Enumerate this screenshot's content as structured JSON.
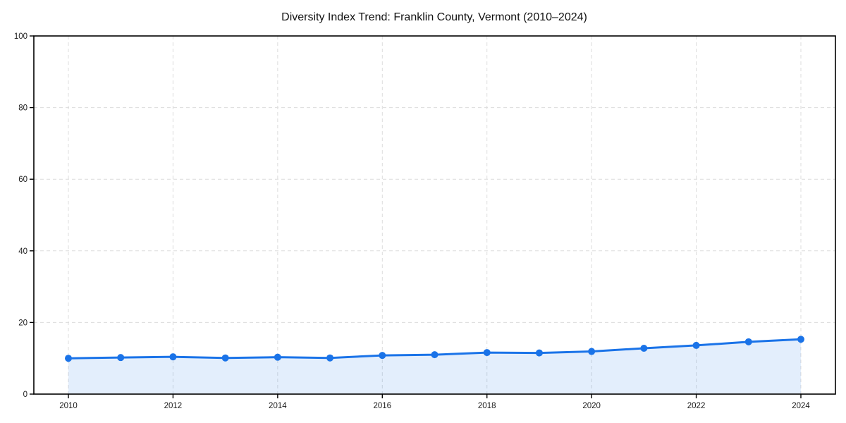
{
  "page": {
    "background_color": "#ffffff"
  },
  "chart_data": {
    "type": "line",
    "title": "Diversity Index Trend: Franklin County, Vermont (2010–2024)",
    "x": [
      2010,
      2011,
      2012,
      2013,
      2014,
      2015,
      2016,
      2017,
      2018,
      2019,
      2020,
      2021,
      2022,
      2023,
      2024
    ],
    "series": [
      {
        "name": "Diversity Index",
        "values": [
          10.0,
          10.2,
          10.4,
          10.1,
          10.3,
          10.1,
          10.8,
          11.0,
          11.6,
          11.5,
          11.9,
          12.8,
          13.6,
          14.6,
          15.3
        ]
      }
    ],
    "xlabel": "",
    "ylabel": "",
    "xlim": [
      2010,
      2024
    ],
    "ylim": [
      0,
      100
    ],
    "yticks": [
      0,
      20,
      40,
      60,
      80,
      100
    ],
    "xticks": [
      2010,
      2012,
      2014,
      2016,
      2018,
      2020,
      2022,
      2024
    ],
    "grid": true,
    "grid_style": "dashed",
    "legend": false,
    "marker": "circle",
    "colors": {
      "line": "#1a73e8",
      "marker": "#1a73e8",
      "area_fill": "rgba(26,115,232,0.12)",
      "grid": "#dcdcdc",
      "plot_border": "#000000",
      "tick_label": "#1a1a1a",
      "title": "#111111"
    }
  }
}
